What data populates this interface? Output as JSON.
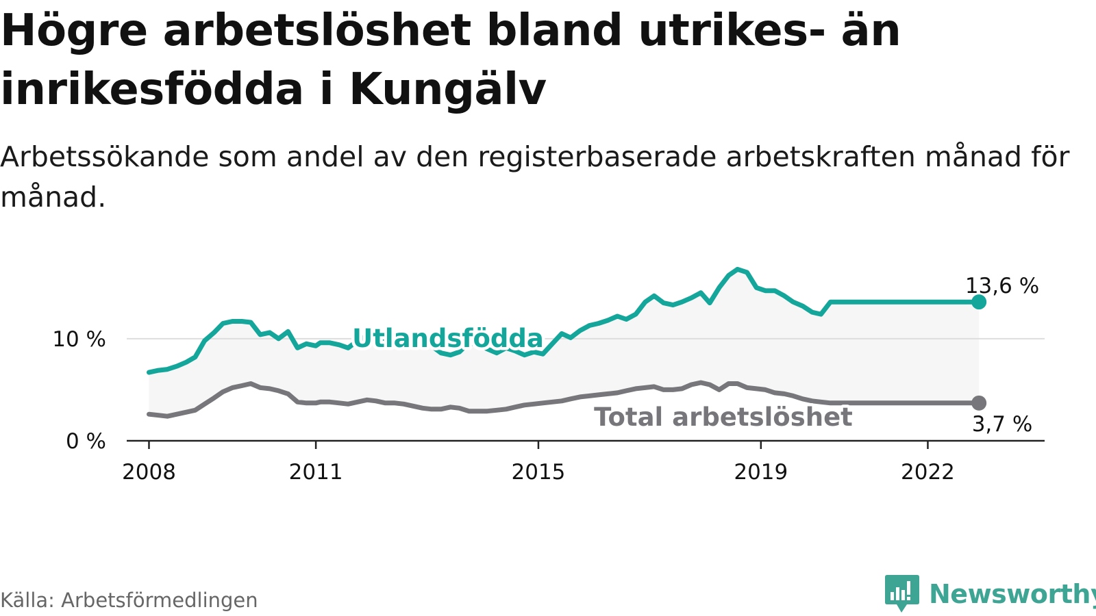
{
  "title": "Högre arbetslöshet bland utrikes- än inrikesfödda i Kungälv",
  "subtitle": "Arbetssökande som andel av den registerbaserade arbetskraften månad för månad.",
  "source": "Källa: Arbetsförmedlingen",
  "brand": {
    "name": "Newsworthy",
    "logo_icon": "newsworthy-chart-bubble-icon",
    "color": "#3ea595"
  },
  "colors": {
    "foreign_born": "#14a69a",
    "total": "#77767b",
    "band": "#f6f6f6",
    "grid": "#dddddd",
    "axis": "#222222"
  },
  "chart_data": {
    "type": "line",
    "x_unit": "year",
    "xlim": [
      2007.6,
      2024.1
    ],
    "ylim": [
      0,
      17.7
    ],
    "x_ticks": [
      2008,
      2011,
      2015,
      2019,
      2022
    ],
    "x_tick_labels": [
      "2008",
      "2011",
      "2015",
      "2019",
      "2022"
    ],
    "y_ticks": [
      0,
      10
    ],
    "y_tick_labels": [
      "0 %",
      "10 %"
    ],
    "grid": true,
    "shaded_between_series": true,
    "series": [
      {
        "name": "Utlandsfödda",
        "label": "Utlandsfödda",
        "end_label": "13,6 %",
        "end_value": 13.6,
        "x": [
          2008.0,
          2008.17,
          2008.33,
          2008.5,
          2008.67,
          2008.83,
          2009.0,
          2009.17,
          2009.33,
          2009.5,
          2009.67,
          2009.83,
          2010.0,
          2010.17,
          2010.33,
          2010.5,
          2010.67,
          2010.83,
          2011.0,
          2011.08,
          2011.25,
          2011.42,
          2011.58,
          2011.75,
          2011.92,
          2012.08,
          2012.25,
          2012.42,
          2012.58,
          2012.75,
          2012.92,
          2013.08,
          2013.25,
          2013.42,
          2013.58,
          2013.75,
          2013.92,
          2014.08,
          2014.25,
          2014.42,
          2014.58,
          2014.75,
          2014.92,
          2015.08,
          2015.25,
          2015.42,
          2015.58,
          2015.75,
          2015.92,
          2016.08,
          2016.25,
          2016.42,
          2016.58,
          2016.75,
          2016.92,
          2017.08,
          2017.25,
          2017.42,
          2017.58,
          2017.75,
          2017.92,
          2018.08,
          2018.25,
          2018.42,
          2018.58,
          2018.75,
          2018.92,
          2019.08,
          2019.25,
          2019.42,
          2019.58,
          2019.75,
          2019.92,
          2020.08,
          2020.25,
          2020.42,
          2020.58,
          2020.75,
          2020.92,
          2021.08,
          2021.25,
          2021.42,
          2021.58,
          2021.75,
          2021.92,
          2022.08,
          2022.25,
          2022.42,
          2022.58,
          2022.75,
          2022.92
        ],
        "values": [
          6.7,
          6.9,
          7.0,
          7.3,
          7.7,
          8.2,
          9.8,
          10.6,
          11.5,
          11.7,
          11.7,
          11.6,
          10.4,
          10.6,
          10.0,
          10.7,
          9.1,
          9.5,
          9.3,
          9.6,
          9.6,
          9.4,
          9.1,
          9.8,
          10.3,
          10.1,
          10.0,
          9.7,
          9.6,
          9.8,
          9.8,
          9.3,
          8.6,
          8.4,
          8.7,
          9.6,
          9.4,
          9.0,
          8.6,
          9.1,
          8.8,
          8.4,
          8.7,
          8.5,
          9.5,
          10.5,
          10.1,
          10.8,
          11.3,
          11.5,
          11.8,
          12.2,
          11.9,
          12.4,
          13.6,
          14.2,
          13.5,
          13.3,
          13.6,
          14.0,
          14.5,
          13.5,
          15.0,
          16.2,
          16.8,
          16.5,
          15.0,
          14.7,
          14.7,
          14.2,
          13.6,
          13.2,
          12.6,
          12.4,
          13.6,
          13.6,
          13.6,
          13.6,
          13.6,
          13.6,
          13.6,
          13.6,
          13.6,
          13.6,
          13.6,
          13.6,
          13.6,
          13.6,
          13.6,
          13.6,
          13.6
        ]
      },
      {
        "name": "Total arbetslöshet",
        "label": "Total arbetslöshet",
        "end_label": "3,7 %",
        "end_value": 3.7,
        "x": [
          2008.0,
          2008.17,
          2008.33,
          2008.5,
          2008.67,
          2008.83,
          2009.0,
          2009.17,
          2009.33,
          2009.5,
          2009.67,
          2009.83,
          2010.0,
          2010.17,
          2010.33,
          2010.5,
          2010.67,
          2010.83,
          2011.0,
          2011.08,
          2011.25,
          2011.42,
          2011.58,
          2011.75,
          2011.92,
          2012.08,
          2012.25,
          2012.42,
          2012.58,
          2012.75,
          2012.92,
          2013.08,
          2013.25,
          2013.42,
          2013.58,
          2013.75,
          2013.92,
          2014.08,
          2014.25,
          2014.42,
          2014.58,
          2014.75,
          2014.92,
          2015.08,
          2015.25,
          2015.42,
          2015.58,
          2015.75,
          2015.92,
          2016.08,
          2016.25,
          2016.42,
          2016.58,
          2016.75,
          2016.92,
          2017.08,
          2017.25,
          2017.42,
          2017.58,
          2017.75,
          2017.92,
          2018.08,
          2018.25,
          2018.42,
          2018.58,
          2018.75,
          2018.92,
          2019.08,
          2019.25,
          2019.42,
          2019.58,
          2019.75,
          2019.92,
          2020.08,
          2020.25,
          2020.42,
          2020.58,
          2020.75,
          2020.92,
          2021.08,
          2021.25,
          2021.42,
          2021.58,
          2021.75,
          2021.92,
          2022.08,
          2022.25,
          2022.42,
          2022.58,
          2022.75,
          2022.92
        ],
        "values": [
          2.6,
          2.5,
          2.4,
          2.6,
          2.8,
          3.0,
          3.6,
          4.2,
          4.8,
          5.2,
          5.4,
          5.6,
          5.2,
          5.1,
          4.9,
          4.6,
          3.8,
          3.7,
          3.7,
          3.8,
          3.8,
          3.7,
          3.6,
          3.8,
          4.0,
          3.9,
          3.7,
          3.7,
          3.6,
          3.4,
          3.2,
          3.1,
          3.1,
          3.3,
          3.2,
          2.9,
          2.9,
          2.9,
          3.0,
          3.1,
          3.3,
          3.5,
          3.6,
          3.7,
          3.8,
          3.9,
          4.1,
          4.3,
          4.4,
          4.5,
          4.6,
          4.7,
          4.9,
          5.1,
          5.2,
          5.3,
          5.0,
          5.0,
          5.1,
          5.5,
          5.7,
          5.5,
          5.0,
          5.6,
          5.6,
          5.2,
          5.1,
          5.0,
          4.7,
          4.6,
          4.4,
          4.1,
          3.9,
          3.8,
          3.7,
          3.7,
          3.7,
          3.7,
          3.7,
          3.7,
          3.7,
          3.7,
          3.7,
          3.7,
          3.7,
          3.7,
          3.7,
          3.7,
          3.7,
          3.7,
          3.7
        ]
      }
    ]
  }
}
